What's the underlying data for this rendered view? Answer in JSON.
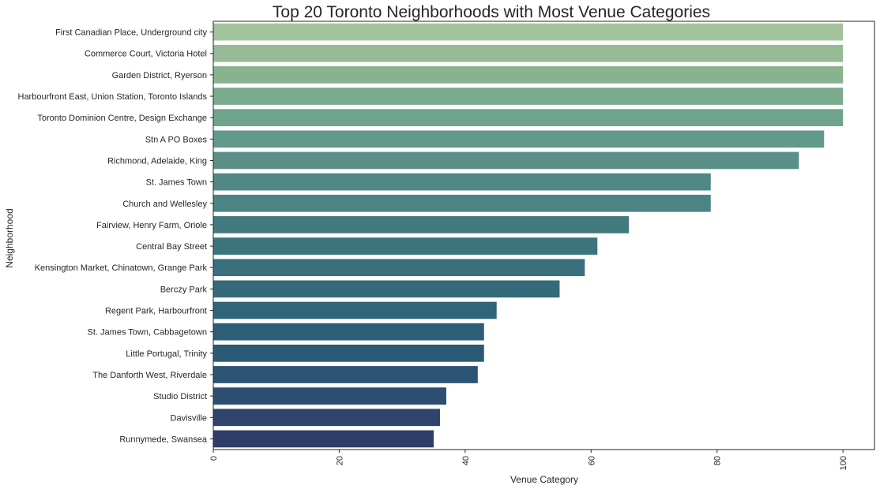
{
  "chart_data": {
    "type": "bar",
    "orientation": "horizontal",
    "title": "Top 20 Toronto Neighborhoods with Most Venue Categories",
    "xlabel": "Venue Category",
    "ylabel": "Neighborhood",
    "xlim": [
      0,
      105
    ],
    "xticks": [
      0,
      20,
      40,
      60,
      80,
      100
    ],
    "grid": false,
    "palette": "crest (sage green to navy)",
    "categories": [
      "First Canadian Place, Underground city",
      "Commerce Court, Victoria Hotel",
      "Garden District, Ryerson",
      "Harbourfront East, Union Station, Toronto Islands",
      "Toronto Dominion Centre, Design Exchange",
      "Stn A PO Boxes",
      "Richmond, Adelaide, King",
      "St. James Town",
      "Church and Wellesley",
      "Fairview, Henry Farm, Oriole",
      "Central Bay Street",
      "Kensington Market, Chinatown, Grange Park",
      "Berczy Park",
      "Regent Park, Harbourfront",
      "St. James Town, Cabbagetown",
      "Little Portugal, Trinity",
      "The Danforth West, Riverdale",
      "Studio District",
      "Davisville",
      "Runnymede, Swansea"
    ],
    "values": [
      100,
      100,
      100,
      100,
      100,
      97,
      93,
      79,
      79,
      66,
      61,
      59,
      55,
      45,
      43,
      43,
      42,
      37,
      36,
      35
    ],
    "colors": [
      "#a1c29a",
      "#96ba95",
      "#87b38f",
      "#7aab8d",
      "#6da48b",
      "#61998a",
      "#5a9087",
      "#518784",
      "#4b8483",
      "#427a80",
      "#3c747e",
      "#3a6f7d",
      "#356a7a",
      "#306478",
      "#2d5e77",
      "#2c5a76",
      "#2b5374",
      "#2d4d71",
      "#2e446d",
      "#2e3d69"
    ]
  }
}
